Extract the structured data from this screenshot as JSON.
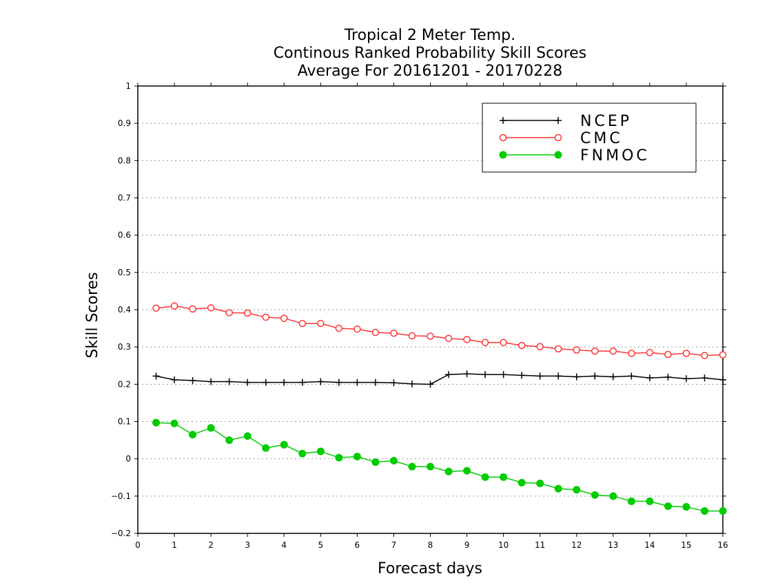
{
  "chart_data": {
    "type": "line",
    "title_lines": [
      "Tropical 2 Meter Temp.",
      "Continous Ranked Probability Skill Scores",
      "Average For 20161201 - 20170228"
    ],
    "xlabel": "Forecast days",
    "ylabel": "Skill Scores",
    "xlim": [
      0,
      16
    ],
    "ylim": [
      -0.2,
      1
    ],
    "x_ticks": [
      0,
      1,
      2,
      3,
      4,
      5,
      6,
      7,
      8,
      9,
      10,
      11,
      12,
      13,
      14,
      15,
      16
    ],
    "y_ticks": [
      -0.2,
      -0.1,
      0,
      0.1,
      0.2,
      0.3,
      0.4,
      0.5,
      0.6,
      0.7,
      0.8,
      0.9,
      1
    ],
    "y_tick_labels": [
      "−0.2",
      "−0.1",
      "0",
      "0.1",
      "0.2",
      "0.3",
      "0.4",
      "0.5",
      "0.6",
      "0.7",
      "0.8",
      "0.9",
      "1"
    ],
    "grid": "horizontal dotted",
    "legend_position": "top-right",
    "x": [
      0.5,
      1,
      1.5,
      2,
      2.5,
      3,
      3.5,
      4,
      4.5,
      5,
      5.5,
      6,
      6.5,
      7,
      7.5,
      8,
      8.5,
      9,
      9.5,
      10,
      10.5,
      11,
      11.5,
      12,
      12.5,
      13,
      13.5,
      14,
      14.5,
      15,
      15.5,
      16
    ],
    "series": [
      {
        "name": "NCEP",
        "color": "#000000",
        "marker": "plus",
        "values": [
          0.222,
          0.212,
          0.21,
          0.207,
          0.207,
          0.205,
          0.205,
          0.205,
          0.205,
          0.207,
          0.205,
          0.205,
          0.205,
          0.204,
          0.201,
          0.2,
          0.226,
          0.228,
          0.226,
          0.226,
          0.224,
          0.222,
          0.222,
          0.22,
          0.222,
          0.22,
          0.222,
          0.217,
          0.219,
          0.215,
          0.217,
          0.212
        ]
      },
      {
        "name": "CMC",
        "color": "#ff3333",
        "marker": "open-circle",
        "values": [
          0.404,
          0.41,
          0.402,
          0.405,
          0.392,
          0.391,
          0.38,
          0.377,
          0.363,
          0.363,
          0.35,
          0.348,
          0.339,
          0.337,
          0.33,
          0.329,
          0.323,
          0.32,
          0.312,
          0.312,
          0.304,
          0.301,
          0.295,
          0.292,
          0.289,
          0.289,
          0.283,
          0.285,
          0.28,
          0.283,
          0.277,
          0.279
        ]
      },
      {
        "name": "FNMOC",
        "color": "#00cc00",
        "marker": "filled-circle",
        "values": [
          0.097,
          0.095,
          0.065,
          0.083,
          0.05,
          0.061,
          0.029,
          0.038,
          0.014,
          0.02,
          0.003,
          0.006,
          -0.009,
          -0.005,
          -0.021,
          -0.021,
          -0.034,
          -0.032,
          -0.049,
          -0.049,
          -0.064,
          -0.066,
          -0.08,
          -0.083,
          -0.097,
          -0.1,
          -0.114,
          -0.114,
          -0.127,
          -0.129,
          -0.14,
          -0.14
        ]
      }
    ]
  }
}
